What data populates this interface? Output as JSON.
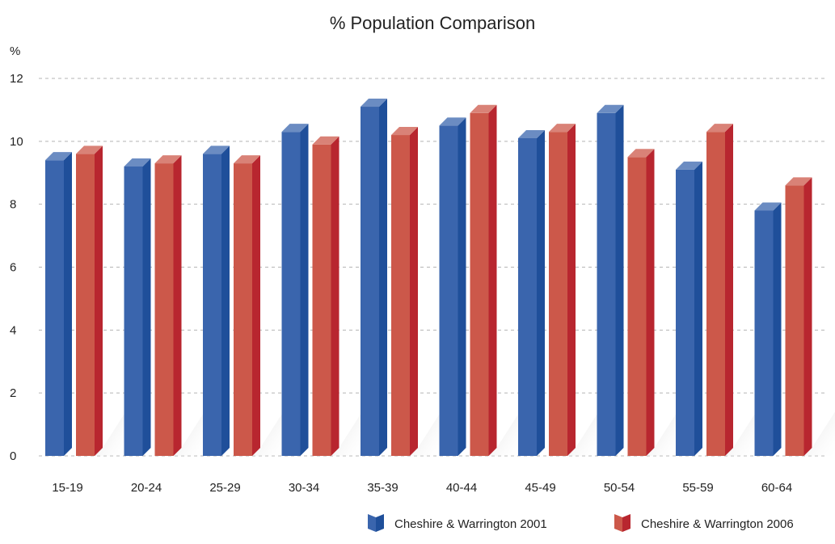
{
  "chart_data": {
    "type": "bar",
    "title": "% Population Comparison",
    "ylabel": "%",
    "xlabel": "",
    "categories": [
      "15-19",
      "20-24",
      "25-29",
      "30-34",
      "35-39",
      "40-44",
      "45-49",
      "50-54",
      "55-59",
      "60-64"
    ],
    "series": [
      {
        "name": "Cheshire & Warrington 2001",
        "color": "#3a65ad",
        "values": [
          9.4,
          9.2,
          9.6,
          10.3,
          11.1,
          10.5,
          10.1,
          10.9,
          9.1,
          7.8
        ]
      },
      {
        "name": "Cheshire & Warrington 2006",
        "color": "#cc584a",
        "values": [
          9.6,
          9.3,
          9.3,
          9.9,
          10.2,
          10.9,
          10.3,
          9.5,
          10.3,
          8.6
        ]
      }
    ],
    "yticks": [
      0,
      2,
      4,
      6,
      8,
      10,
      12
    ],
    "ylim": [
      0,
      12
    ],
    "grid": true,
    "legend_position": "bottom-right"
  }
}
